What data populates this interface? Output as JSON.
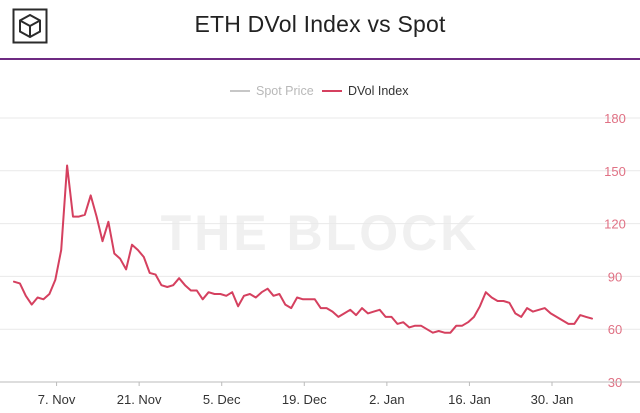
{
  "brand": {
    "watermark": "THE BLOCK",
    "logo_icon": "the-block-cube-logo"
  },
  "colors": {
    "accent": "#6e2a82",
    "dvol": "#d5405f",
    "spot": "#c7c7c7",
    "axis_text": "#e07184",
    "xtick_text": "#333333",
    "grid": "#e9e9e9"
  },
  "chart_data": {
    "type": "line",
    "title": "ETH DVol Index vs Spot",
    "legend": {
      "position": "top-center",
      "entries": [
        "Spot Price",
        "DVol Index"
      ]
    },
    "series": [
      {
        "name": "Spot Price",
        "color": "#c7c7c7",
        "values": []
      },
      {
        "name": "DVol Index",
        "color": "#d5405f",
        "values": [
          87,
          86,
          79,
          74,
          78,
          77,
          80,
          88,
          105,
          153,
          124,
          124,
          125,
          136,
          124,
          110,
          121,
          103,
          100,
          94,
          108,
          105,
          101,
          92,
          91,
          85,
          84,
          85,
          89,
          85,
          82,
          82,
          77,
          81,
          80,
          80,
          79,
          81,
          73,
          79,
          80,
          78,
          81,
          83,
          79,
          80,
          74,
          72,
          78,
          77,
          77,
          77,
          72,
          72,
          70,
          67,
          69,
          71,
          68,
          72,
          69,
          70,
          71,
          67,
          67,
          63,
          64,
          61,
          62,
          62,
          60,
          58,
          59,
          58,
          58,
          62,
          62,
          64,
          67,
          73,
          81,
          78,
          76,
          76,
          75,
          69,
          67,
          72,
          70,
          71,
          72,
          69,
          67,
          65,
          63,
          63,
          68,
          67,
          66
        ]
      }
    ],
    "x_ticks": [
      "7. Nov",
      "21. Nov",
      "5. Dec",
      "19. Dec",
      "2. Jan",
      "16. Jan",
      "30. Jan"
    ],
    "x_tick_index": [
      14,
      28,
      42,
      56,
      70,
      84,
      98
    ],
    "y_ticks": [
      30,
      60,
      90,
      120,
      150,
      180
    ],
    "ylim": [
      30,
      180
    ],
    "grid": true,
    "xlabel": "",
    "ylabel": ""
  }
}
